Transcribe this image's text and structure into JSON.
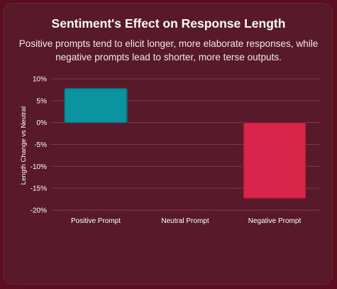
{
  "chart_data": {
    "type": "bar",
    "title": "Sentiment's Effect on Response Length",
    "subtitle": "Positive prompts tend to elicit longer, more elaborate responses, while negative prompts lead to shorter, more terse outputs.",
    "categories": [
      "Positive Prompt",
      "Neutral Prompt",
      "Negative Prompt"
    ],
    "values": [
      7.8,
      0,
      -17.3
    ],
    "bar_colors": [
      "#0b949f",
      "#c7c7c7",
      "#d9254a"
    ],
    "bar_stroke": [
      "#0a6b73",
      "#999999",
      "#8b1430"
    ],
    "ylabel": "Length Change vs Neutral",
    "xlabel": "",
    "ylim": [
      -20,
      10
    ],
    "yticks": [
      10,
      5,
      0,
      -5,
      -10,
      -15,
      -20
    ],
    "ytick_labels": [
      "10%",
      "5%",
      "0%",
      "-5%",
      "-10%",
      "-15%",
      "-20%"
    ],
    "grid": true,
    "colors": {
      "background": "#581a2b",
      "gridline": "#7a3a4b"
    }
  }
}
